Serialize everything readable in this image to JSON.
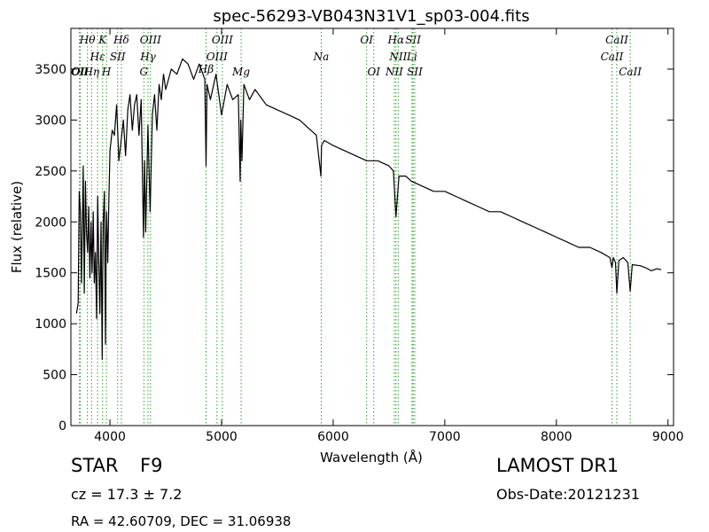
{
  "chart_data": {
    "type": "line",
    "title": "spec-56293-VB043N31V1_sp03-004.fits",
    "xlabel": "Wavelength (Å)",
    "ylabel": "Flux (relative)",
    "xlim": [
      3650,
      9050
    ],
    "ylim": [
      0,
      3900
    ],
    "xticks": [
      4000,
      5000,
      6000,
      7000,
      8000,
      9000
    ],
    "yticks": [
      0,
      500,
      1000,
      1500,
      2000,
      2500,
      3000,
      3500
    ],
    "grid": false,
    "line_color": "#000000",
    "marker_color": "#2ca02c",
    "series": [
      {
        "x": [
          3700,
          3715,
          3725,
          3735,
          3745,
          3760,
          3770,
          3780,
          3790,
          3800,
          3810,
          3820,
          3830,
          3840,
          3850,
          3860,
          3870,
          3880,
          3890,
          3900,
          3910,
          3920,
          3930,
          3935,
          3940,
          3950,
          3960,
          3965,
          3970,
          3980,
          3990,
          4000,
          4020,
          4040,
          4060,
          4080,
          4100,
          4120,
          4140,
          4160,
          4180,
          4200,
          4220,
          4240,
          4260,
          4280,
          4300,
          4310,
          4320,
          4340,
          4360,
          4380,
          4400,
          4420,
          4440,
          4460,
          4480,
          4500,
          4550,
          4600,
          4650,
          4700,
          4750,
          4800,
          4850,
          4861,
          4870,
          4900,
          4950,
          5000,
          5050,
          5100,
          5150,
          5167,
          5172,
          5183,
          5200,
          5250,
          5300,
          5400,
          5500,
          5600,
          5700,
          5800,
          5850,
          5890,
          5896,
          5920,
          6000,
          6100,
          6200,
          6300,
          6400,
          6500,
          6540,
          6563,
          6590,
          6650,
          6700,
          6800,
          6900,
          7000,
          7100,
          7200,
          7300,
          7400,
          7500,
          7600,
          7700,
          7800,
          7900,
          8000,
          8100,
          8200,
          8300,
          8400,
          8480,
          8498,
          8510,
          8530,
          8542,
          8560,
          8600,
          8640,
          8662,
          8680,
          8750,
          8800,
          8850,
          8900,
          8940
        ],
        "y": [
          1100,
          1200,
          2300,
          2100,
          1400,
          2550,
          1300,
          2400,
          1900,
          1700,
          2150,
          1450,
          2000,
          1500,
          2100,
          1400,
          1700,
          1050,
          2250,
          1600,
          1100,
          2000,
          650,
          1500,
          2000,
          2300,
          800,
          1800,
          2100,
          1600,
          2200,
          2700,
          2900,
          2850,
          3150,
          2600,
          2800,
          3000,
          2650,
          3100,
          3250,
          2900,
          3150,
          3250,
          2850,
          3200,
          1850,
          2600,
          1900,
          2950,
          2100,
          3050,
          3250,
          2900,
          3350,
          3200,
          3450,
          3300,
          3500,
          3450,
          3600,
          3550,
          3400,
          3550,
          3400,
          2550,
          3350,
          3200,
          3450,
          3050,
          3350,
          3200,
          3250,
          2400,
          3000,
          2600,
          3350,
          3200,
          3300,
          3150,
          3100,
          3050,
          3000,
          2900,
          2850,
          2450,
          2750,
          2800,
          2750,
          2700,
          2650,
          2600,
          2600,
          2550,
          2500,
          2050,
          2450,
          2450,
          2400,
          2350,
          2300,
          2300,
          2250,
          2200,
          2150,
          2100,
          2100,
          2050,
          2000,
          1950,
          1900,
          1850,
          1800,
          1750,
          1750,
          1700,
          1650,
          1550,
          1650,
          1600,
          1300,
          1620,
          1650,
          1600,
          1320,
          1580,
          1570,
          1550,
          1520,
          1540,
          1530
        ]
      }
    ],
    "line_markers": [
      {
        "x": 3727,
        "label": "OII",
        "row": "upper"
      },
      {
        "x": 3734,
        "label": "OII",
        "row": "upper"
      },
      {
        "x": 3798,
        "label": "Hθ",
        "row": "top"
      },
      {
        "x": 3835,
        "label": "Hη",
        "row": "upper"
      },
      {
        "x": 3889,
        "label": "Hε",
        "row": "mid"
      },
      {
        "x": 3934,
        "label": "K",
        "row": "top"
      },
      {
        "x": 3969,
        "label": "H",
        "row": "upper"
      },
      {
        "x": 4069,
        "label": "SII",
        "row": "mid"
      },
      {
        "x": 4102,
        "label": "Hδ",
        "row": "top"
      },
      {
        "x": 4304,
        "label": "G",
        "row": "upper"
      },
      {
        "x": 4341,
        "label": "Hγ",
        "row": "mid"
      },
      {
        "x": 4363,
        "label": "OIII",
        "row": "top"
      },
      {
        "x": 4861,
        "label": "Hβ",
        "row": "low"
      },
      {
        "x": 4959,
        "label": "OIII",
        "row": "mid"
      },
      {
        "x": 5007,
        "label": "OIII",
        "row": "top"
      },
      {
        "x": 5175,
        "label": "Mg",
        "row": "upper"
      },
      {
        "x": 5893,
        "label": "Na",
        "row": "mid"
      },
      {
        "x": 6300,
        "label": "OI",
        "row": "top"
      },
      {
        "x": 6364,
        "label": "OI",
        "row": "upper"
      },
      {
        "x": 6548,
        "label": "NII",
        "row": "upper"
      },
      {
        "x": 6563,
        "label": "Hα",
        "row": "top"
      },
      {
        "x": 6583,
        "label": "NII",
        "row": "mid"
      },
      {
        "x": 6707,
        "label": "Li",
        "row": "mid"
      },
      {
        "x": 6716,
        "label": "SII",
        "row": "top"
      },
      {
        "x": 6731,
        "label": "SII",
        "row": "upper"
      },
      {
        "x": 8498,
        "label": "CaII",
        "row": "mid"
      },
      {
        "x": 8542,
        "label": "CaII",
        "row": "top"
      },
      {
        "x": 8662,
        "label": "CaII",
        "row": "upper"
      }
    ]
  },
  "footer": {
    "object_class": "STAR",
    "subclass": "F9",
    "survey": "LAMOST DR1",
    "redshift": "cz = 17.3 ± 7.2",
    "obs_date": "Obs-Date:20121231",
    "coords": "RA = 42.60709, DEC = 31.06938"
  }
}
